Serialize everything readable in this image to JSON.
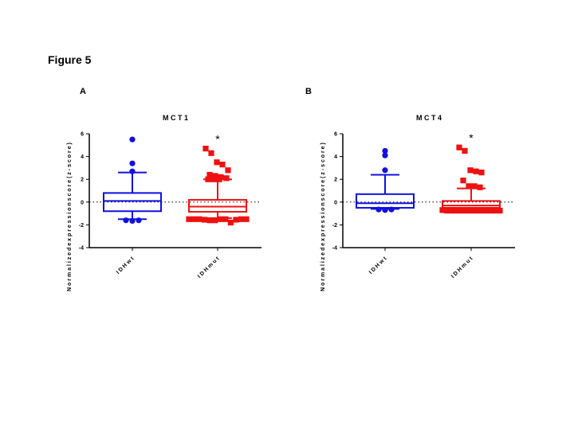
{
  "figure_title": "Figure 5",
  "colors": {
    "wt": "#1010e0",
    "mut": "#ee1111",
    "axis": "#000000"
  },
  "chart_data": [
    {
      "panel_label": "A",
      "type": "box",
      "title": "M C T 1",
      "ylabel": "N o r m a l i z e d   e x p r e s s i o n   s c o r e   ( z - s c o r e )",
      "ylim": [
        -4,
        6
      ],
      "yticks": [
        -4,
        -2,
        0,
        2,
        4,
        6
      ],
      "ytick_labels": [
        "-4",
        "-2",
        "0",
        "2",
        "4",
        "6"
      ],
      "reference_line": 0,
      "groups": [
        {
          "name": "I D H w t",
          "color_key": "wt",
          "marker": "circle",
          "q1": -0.8,
          "median": 0.1,
          "q3": 0.8,
          "whisker_low": -1.5,
          "whisker_high": 2.6,
          "outliers": [
            5.5,
            3.4,
            2.7,
            -1.6,
            -1.65,
            -1.6
          ],
          "significance": ""
        },
        {
          "name": "I D H m u t",
          "color_key": "mut",
          "marker": "square",
          "q1": -0.85,
          "median": -0.4,
          "q3": 0.2,
          "whisker_low": -1.4,
          "whisker_high": 2.0,
          "outliers": [
            4.7,
            4.3,
            3.5,
            3.3,
            2.8,
            2.4,
            2.3,
            2.2,
            2.1,
            2.0,
            2.0,
            2.0,
            -1.5,
            -1.5,
            -1.5,
            -1.55,
            -1.6,
            -1.6,
            -1.5,
            -1.5,
            -1.8,
            -1.55,
            -1.5,
            -1.5
          ],
          "significance": "*"
        }
      ]
    },
    {
      "panel_label": "B",
      "type": "box",
      "title": "M C T 4",
      "ylabel": "N o r m a l i z e d   e x p r e s s i o n   s c o r e   ( z - s c o r e )",
      "ylim": [
        -4,
        6
      ],
      "yticks": [
        -4,
        -2,
        0,
        2,
        4,
        6
      ],
      "ytick_labels": [
        "-4",
        "-2",
        "0",
        "2",
        "4",
        "6"
      ],
      "reference_line": 0,
      "groups": [
        {
          "name": "I D H w t",
          "color_key": "wt",
          "marker": "circle",
          "q1": -0.5,
          "median": -0.1,
          "q3": 0.7,
          "whisker_low": -0.6,
          "whisker_high": 2.4,
          "outliers": [
            4.5,
            4.1,
            2.8,
            -0.65,
            -0.7,
            -0.65
          ],
          "significance": ""
        },
        {
          "name": "I D H m u t",
          "color_key": "mut",
          "marker": "square",
          "q1": -0.5,
          "median": -0.3,
          "q3": 0.1,
          "whisker_low": -0.7,
          "whisker_high": 1.2,
          "outliers": [
            4.8,
            4.5,
            2.8,
            2.7,
            2.6,
            1.9,
            1.4,
            1.4,
            1.3,
            -0.7,
            -0.75,
            -0.75,
            -0.75,
            -0.75,
            -0.75,
            -0.75,
            -0.75,
            -0.75,
            -0.75,
            -0.75,
            -0.75,
            -0.75,
            -0.75
          ],
          "significance": "*"
        }
      ]
    }
  ]
}
